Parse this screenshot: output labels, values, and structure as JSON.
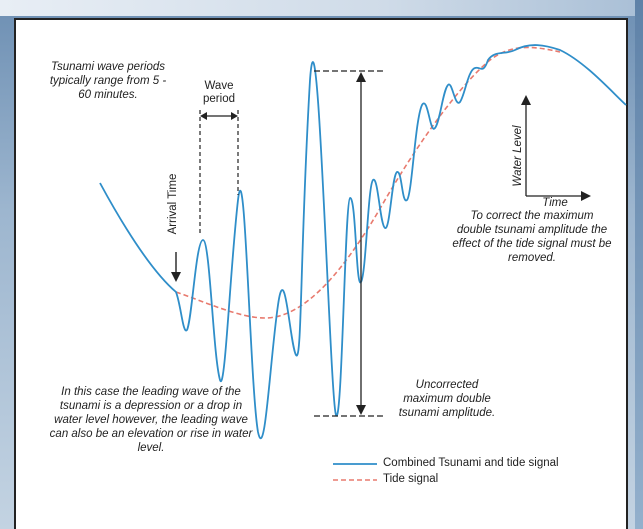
{
  "texts": {
    "periods_note": "Tsunami wave periods typically range from 5 - 60 minutes.",
    "wave_period": "Wave period",
    "arrival_time": "Arrival Time",
    "depression_note": "In this case the leading wave of the tsunami is a depression or a drop in water level however, the leading wave can also be an elevation or rise in water level.",
    "uncorrected_note": "Uncorrected maximum double tsunami amplitude.",
    "correct_note": "To correct the maximum double tsunami amplitude the effect of the tide signal must be removed.",
    "water_level_axis": "Water Level",
    "time_axis": "Time"
  },
  "legend": [
    {
      "label": "Combined Tsunami and tide signal",
      "color": "#2f8ec9",
      "style": "solid"
    },
    {
      "label": "Tide signal",
      "color": "#e87a6e",
      "style": "dashed"
    }
  ],
  "colors": {
    "combined": "#2f8ec9",
    "tide": "#e87a6e",
    "annotation": "#222222"
  }
}
